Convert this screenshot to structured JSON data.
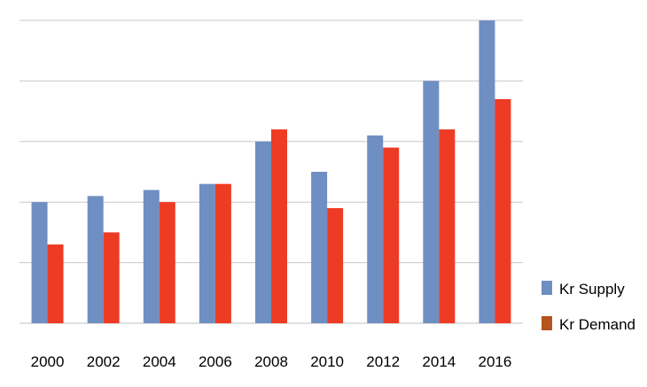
{
  "chart_data": {
    "type": "bar",
    "categories": [
      "2000",
      "2002",
      "2004",
      "2006",
      "2008",
      "2010",
      "2012",
      "2014",
      "2016"
    ],
    "series": [
      {
        "name": "Kr Supply",
        "color": "#6f8fc3",
        "values": [
          2.0,
          2.1,
          2.2,
          2.3,
          3.0,
          2.5,
          3.1,
          4.0,
          5.0
        ]
      },
      {
        "name": "Kr Demand",
        "color": "#ee3b24",
        "values": [
          1.3,
          1.5,
          2.0,
          2.3,
          3.2,
          1.9,
          2.9,
          3.2,
          3.7
        ]
      }
    ],
    "ylim": [
      0,
      5
    ],
    "y_gridlines": [
      0,
      1,
      2,
      3,
      4,
      5
    ],
    "y_tick_labels_shown": false,
    "grid": true,
    "legend_position": "bottom-right",
    "title": "",
    "xlabel": "",
    "ylabel": ""
  }
}
